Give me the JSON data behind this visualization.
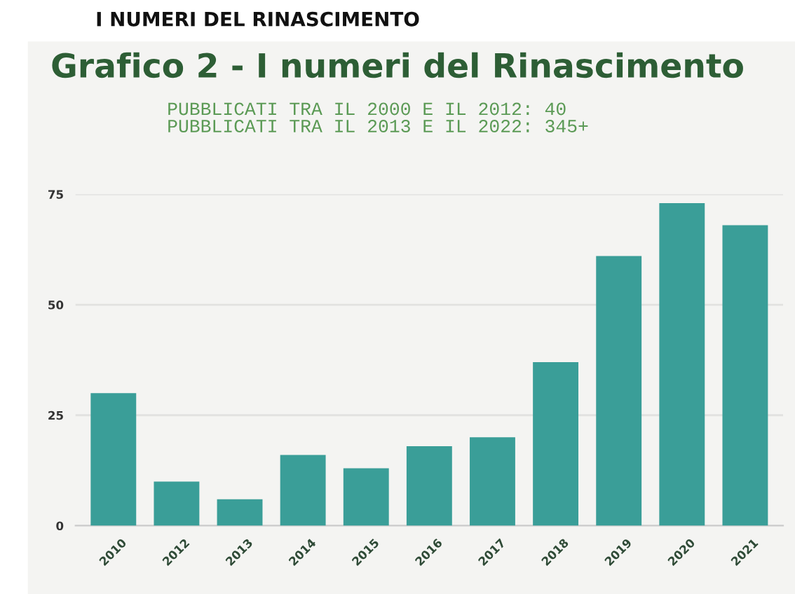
{
  "chart_data": {
    "type": "bar",
    "title": "Grafico 2 - I numeri del Rinascimento",
    "subtitle": "PUBBLICATI TRA IL 2000 E IL 2012: 40\nPUBBLICATI TRA IL 2013 E IL 2022: 345+",
    "annotations": [
      "I NUMERI DEL RINASCIMENTO"
    ],
    "categories": [
      "2010",
      "2012",
      "2013",
      "2014",
      "2015",
      "2016",
      "2017",
      "2018",
      "2019",
      "2020",
      "2021"
    ],
    "values": [
      30,
      10,
      6,
      16,
      13,
      18,
      20,
      37,
      61,
      73,
      68
    ],
    "color": "#3a9e98",
    "ylim": [
      0,
      75
    ],
    "yticks": [
      0,
      25,
      50,
      75
    ],
    "grid": "y",
    "legend": false
  }
}
